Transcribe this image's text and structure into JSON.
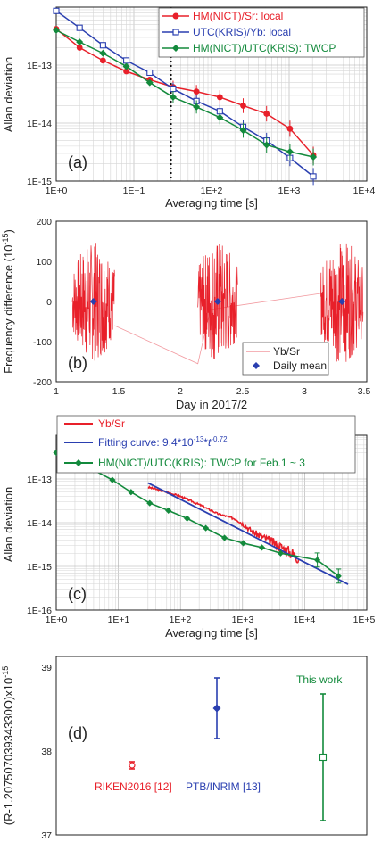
{
  "colors": {
    "red": "#e8202a",
    "blue": "#2a3fb0",
    "green": "#138a3c",
    "pink": "#f29aa0",
    "axis": "#222222",
    "grid": "#c8c8c8"
  },
  "chart_data": [
    {
      "id": "a",
      "panel_label": "(a)",
      "type": "line",
      "xscale": "log",
      "yscale": "log",
      "xlabel": "Averaging time [s]",
      "ylabel": "Allan deviation",
      "xlim": [
        1,
        10000
      ],
      "ylim": [
        1e-15,
        1e-12
      ],
      "xticks": [
        "1E+0",
        "1E+1",
        "1E+2",
        "1E+3",
        "1E+4"
      ],
      "yticks": [
        "1E-15",
        "1E-14",
        "1E-13"
      ],
      "vline_x": 30,
      "legend_position": "top-right",
      "series": [
        {
          "name": "HM(NICT)/Sr: local",
          "color": "#e8202a",
          "marker": "circle",
          "x": [
            1,
            2,
            4,
            8,
            16,
            32,
            64,
            128,
            256,
            512,
            1024,
            2048
          ],
          "y": [
            4.2e-13,
            2e-13,
            1.2e-13,
            7.8e-14,
            5.6e-14,
            4.2e-14,
            3.5e-14,
            2.8e-14,
            2e-14,
            1.45e-14,
            8e-15,
            2.8e-15
          ]
        },
        {
          "name": "UTC(KRIS)/Yb: local",
          "color": "#2a3fb0",
          "marker": "square",
          "x": [
            1,
            2,
            4,
            8,
            16,
            32,
            64,
            128,
            256,
            512,
            1024,
            2048
          ],
          "y": [
            8.6e-13,
            4.4e-13,
            2.2e-13,
            1.2e-13,
            7.4e-14,
            3.9e-14,
            2.4e-14,
            1.6e-14,
            8.6e-15,
            5e-15,
            2.5e-15,
            1.2e-15
          ]
        },
        {
          "name": "HM(NICT)/UTC(KRIS): TWCP",
          "color": "#138a3c",
          "marker": "diamond",
          "x": [
            1,
            2,
            4,
            8,
            16,
            32,
            64,
            128,
            256,
            512,
            1024,
            2048
          ],
          "y": [
            4e-13,
            2.5e-13,
            1.6e-13,
            9.5e-14,
            5e-14,
            2.8e-14,
            1.9e-14,
            1.25e-14,
            7.5e-15,
            4.2e-15,
            3.2e-15,
            2.6e-15
          ]
        }
      ]
    },
    {
      "id": "b",
      "panel_label": "(b)",
      "type": "line",
      "xlabel": "Day in 2017/2",
      "ylabel": "Frequency difference (10^-15)",
      "xlim": [
        1,
        3.5
      ],
      "ylim": [
        -200,
        200
      ],
      "xticks": [
        "1",
        "1.5",
        "2",
        "2.5",
        "3",
        "3.5"
      ],
      "yticks": [
        "-200",
        "-100",
        "0",
        "100",
        "200"
      ],
      "legend_position": "bottom-right",
      "series": [
        {
          "name": "Yb/Sr",
          "color": "#e8202a",
          "bursts": [
            {
              "x_start": 1.13,
              "x_end": 1.47,
              "amplitude": 150
            },
            {
              "x_start": 2.14,
              "x_end": 2.46,
              "amplitude": 155
            },
            {
              "x_start": 3.13,
              "x_end": 3.47,
              "amplitude": 155
            }
          ],
          "connector_x": [
            1.47,
            2.14,
            2.24,
            3.13
          ],
          "connector_y": [
            -60,
            -155,
            -20,
            20
          ]
        },
        {
          "name": "Daily mean",
          "color": "#2a3fb0",
          "marker": "diamond",
          "x": [
            1.3,
            2.3,
            3.3
          ],
          "y": [
            0,
            0,
            0
          ]
        }
      ]
    },
    {
      "id": "c",
      "panel_label": "(c)",
      "type": "line",
      "xscale": "log",
      "yscale": "log",
      "xlabel": "Averaging time [s]",
      "ylabel": "Allan deviation",
      "xlim": [
        1,
        100000
      ],
      "ylim": [
        1e-16,
        1e-12
      ],
      "xticks": [
        "1E+0",
        "1E+1",
        "1E+2",
        "1E+3",
        "1E+4",
        "1E+5"
      ],
      "yticks": [
        "1E-16",
        "1E-15",
        "1E-14",
        "1E-13"
      ],
      "legend_position": "top",
      "series": [
        {
          "name": "Yb/Sr",
          "color": "#e8202a",
          "x": [
            30,
            60,
            100,
            200,
            400,
            800,
            1500,
            3000,
            5000,
            8000
          ],
          "y": [
            6.5e-14,
            5e-14,
            4e-14,
            2.6e-14,
            1.6e-14,
            1.2e-14,
            6e-15,
            3.6e-15,
            2.4e-15,
            1.6e-15
          ]
        },
        {
          "name": "Fitting curve: 9.4*10^-13*t^-0.72",
          "color": "#2a3fb0",
          "coefficient": 9.4e-13,
          "exponent": -0.72,
          "x_range": [
            30,
            50000
          ]
        },
        {
          "name": "HM(NICT)/UTC(KRIS): TWCP for Feb.1 ~ 3",
          "color": "#138a3c",
          "marker": "diamond",
          "x": [
            1,
            2,
            4,
            8,
            16,
            32,
            64,
            128,
            256,
            512,
            1024,
            2048,
            4096,
            16000,
            35000
          ],
          "y": [
            4e-13,
            2.5e-13,
            1.6e-13,
            9.5e-14,
            5e-14,
            2.8e-14,
            1.9e-14,
            1.25e-14,
            7.5e-15,
            4.5e-15,
            3.4e-15,
            2.7e-15,
            2e-15,
            1.4e-15,
            6e-16
          ]
        }
      ]
    },
    {
      "id": "d",
      "panel_label": "(d)",
      "type": "scatter",
      "ylabel": "(R-1.20750703934330O)x10^-15",
      "ylim": [
        37,
        39
      ],
      "yticks": [
        "37",
        "38",
        "39"
      ],
      "points": [
        {
          "label": "RIKEN2016 [12]",
          "color": "#e8202a",
          "marker": "open-circle",
          "y": 37.78,
          "err": 0.04
        },
        {
          "label": "PTB/INRIM [13]",
          "color": "#2a3fb0",
          "marker": "diamond",
          "y": 38.42,
          "err": 0.34
        },
        {
          "label": "This work",
          "color": "#138a3c",
          "marker": "open-square",
          "y": 37.87,
          "err": 0.71
        }
      ]
    }
  ]
}
